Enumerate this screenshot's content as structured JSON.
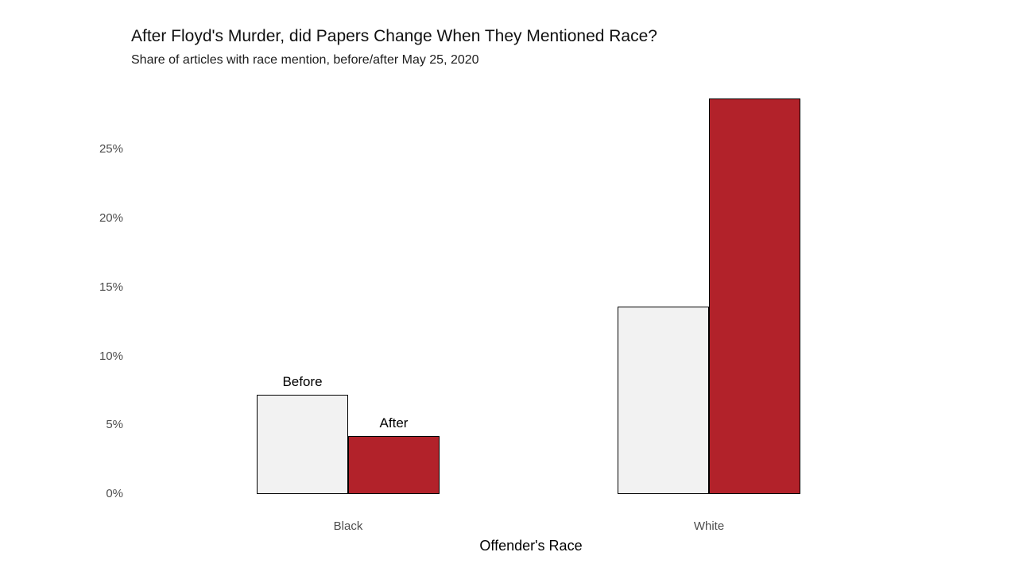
{
  "chart_data": {
    "type": "bar",
    "title": "After Floyd's Murder, did Papers Change When They Mentioned Race?",
    "subtitle": "Share of articles with race mention, before/after May 25, 2020",
    "xlabel": "Offender's Race",
    "ylabel": "",
    "categories": [
      "Black",
      "White"
    ],
    "series": [
      {
        "name": "Before",
        "color": "#f2f2f2",
        "values": [
          7.2,
          13.6
        ]
      },
      {
        "name": "After",
        "color": "#b2222a",
        "values": [
          4.2,
          28.7
        ]
      }
    ],
    "yticks": [
      0,
      5,
      10,
      15,
      20,
      25
    ],
    "ytick_labels": [
      "0%",
      "5%",
      "10%",
      "15%",
      "20%",
      "25%"
    ],
    "ylim": [
      0,
      29
    ],
    "grid": false,
    "axis_lines": false,
    "legend_position": "none",
    "annotations": [
      {
        "text": "Before",
        "category_index": 0,
        "series_index": 0
      },
      {
        "text": "After",
        "category_index": 0,
        "series_index": 1
      }
    ],
    "bar_outline_color": "#000000",
    "axis_text_color": "#4d4d4d",
    "background_color": "#ffffff"
  }
}
